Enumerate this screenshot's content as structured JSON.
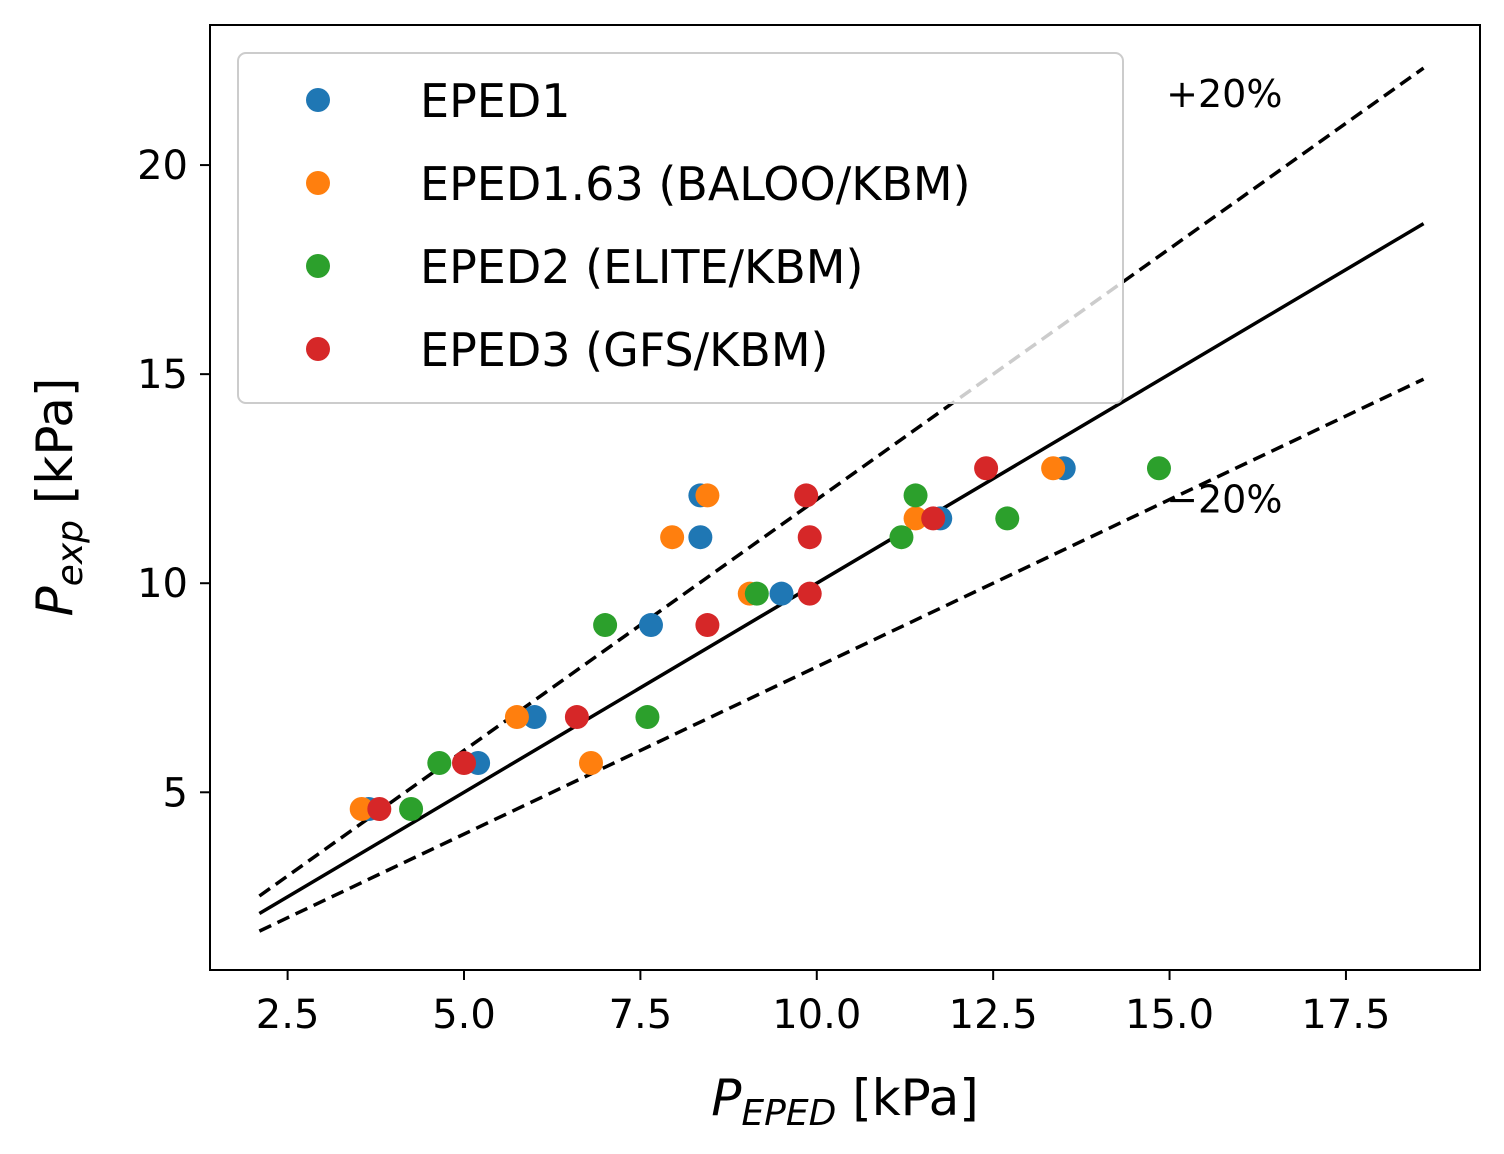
{
  "chart_data": {
    "type": "scatter",
    "xlabel_main": "P",
    "xlabel_sub": "EPED",
    "xlabel_unit": " [kPa]",
    "ylabel_main": "P",
    "ylabel_sub": "exp",
    "ylabel_unit": " [kPa]",
    "xlim": [
      1.4,
      19.4
    ],
    "ylim": [
      0.75,
      23.35
    ],
    "xticks": [
      2.5,
      5.0,
      7.5,
      10.0,
      12.5,
      15.0,
      17.5
    ],
    "xtick_labels": [
      "2.5",
      "5.0",
      "7.5",
      "10.0",
      "12.5",
      "15.0",
      "17.5"
    ],
    "yticks": [
      5,
      10,
      15,
      20
    ],
    "ytick_labels": [
      "5",
      "10",
      "15",
      "20"
    ],
    "legend_position": "top-left",
    "reference_lines": [
      {
        "name": "identity",
        "slope": 1.0,
        "style": "solid",
        "x_range": [
          2.1,
          18.6
        ]
      },
      {
        "name": "plus20",
        "slope": 1.2,
        "style": "dashed",
        "x_range": [
          2.1,
          18.6
        ]
      },
      {
        "name": "minus20",
        "slope": 0.8,
        "style": "dashed",
        "x_range": [
          2.1,
          18.6
        ]
      }
    ],
    "annotations": [
      {
        "text": "+20%",
        "x": 16.6,
        "y": 21.7
      },
      {
        "text": "−20%",
        "x": 16.6,
        "y": 12.0
      }
    ],
    "series": [
      {
        "name": "EPED1",
        "color": "#1f77b4",
        "points": [
          [
            3.65,
            4.6
          ],
          [
            5.2,
            5.7
          ],
          [
            6.0,
            6.8
          ],
          [
            7.65,
            9.0
          ],
          [
            8.35,
            11.1
          ],
          [
            8.35,
            12.1
          ],
          [
            9.5,
            9.75
          ],
          [
            11.75,
            11.55
          ],
          [
            13.5,
            12.75
          ]
        ]
      },
      {
        "name": "EPED1.63 (BALOO/KBM)",
        "color": "#ff7f0e",
        "points": [
          [
            3.55,
            4.6
          ],
          [
            5.75,
            6.8
          ],
          [
            6.8,
            5.7
          ],
          [
            7.95,
            11.1
          ],
          [
            8.45,
            12.1
          ],
          [
            9.05,
            9.75
          ],
          [
            11.4,
            11.55
          ],
          [
            13.35,
            12.75
          ]
        ]
      },
      {
        "name": "EPED2 (ELITE/KBM)",
        "color": "#2ca02c",
        "points": [
          [
            4.25,
            4.6
          ],
          [
            4.65,
            5.7
          ],
          [
            7.0,
            9.0
          ],
          [
            7.6,
            6.8
          ],
          [
            9.15,
            9.75
          ],
          [
            11.2,
            11.1
          ],
          [
            11.4,
            12.1
          ],
          [
            12.7,
            11.55
          ],
          [
            14.85,
            12.75
          ]
        ]
      },
      {
        "name": "EPED3 (GFS/KBM)",
        "color": "#d62728",
        "points": [
          [
            3.8,
            4.6
          ],
          [
            5.0,
            5.7
          ],
          [
            6.6,
            6.8
          ],
          [
            8.45,
            9.0
          ],
          [
            9.85,
            12.1
          ],
          [
            9.9,
            11.1
          ],
          [
            9.9,
            9.75
          ],
          [
            11.65,
            11.55
          ],
          [
            12.4,
            12.75
          ]
        ]
      }
    ]
  }
}
